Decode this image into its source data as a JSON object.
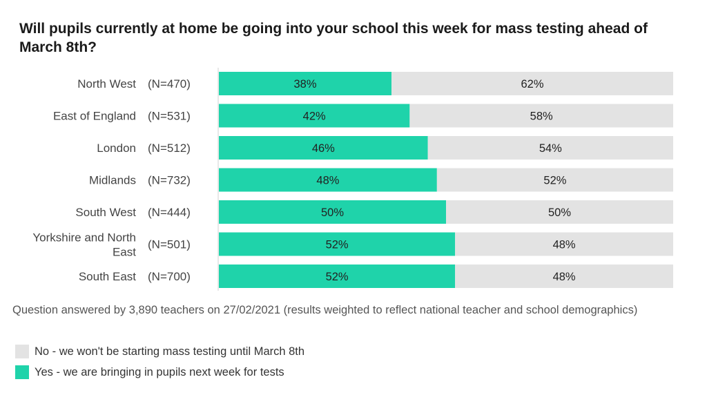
{
  "chart_data": {
    "type": "bar",
    "stacked": true,
    "orientation": "horizontal",
    "title": "Will pupils currently at home be going into your school this week for mass testing ahead of March 8th?",
    "categories": [
      "North West",
      "East of England",
      "London",
      "Midlands",
      "South West",
      "Yorkshire and North East",
      "South East"
    ],
    "sample_sizes": [
      "(N=470)",
      "(N=531)",
      "(N=512)",
      "(N=732)",
      "(N=444)",
      "(N=501)",
      "(N=700)"
    ],
    "series": [
      {
        "name": "Yes - we are bringing in pupils next week for tests",
        "color": "#1fd3aa",
        "values": [
          38,
          42,
          46,
          48,
          50,
          52,
          52
        ],
        "labels": [
          "38%",
          "42%",
          "46%",
          "48%",
          "50%",
          "52%",
          "52%"
        ]
      },
      {
        "name": "No - we won't be starting mass testing until March 8th",
        "color": "#e3e3e3",
        "values": [
          62,
          58,
          54,
          52,
          50,
          48,
          48
        ],
        "labels": [
          "62%",
          "58%",
          "54%",
          "52%",
          "50%",
          "48%",
          "48%"
        ]
      }
    ],
    "xlim": [
      0,
      100
    ],
    "grid": false,
    "legend_position": "bottom-left"
  },
  "footnote": "Question answered by 3,890 teachers on 27/02/2021 (results weighted to reflect national teacher and school demographics)",
  "legend": {
    "no_label": "No - we won't be starting mass testing until March 8th",
    "yes_label": "Yes - we are bringing in pupils next week for tests"
  },
  "colors": {
    "yes": "#1fd3aa",
    "no": "#e3e3e3"
  }
}
